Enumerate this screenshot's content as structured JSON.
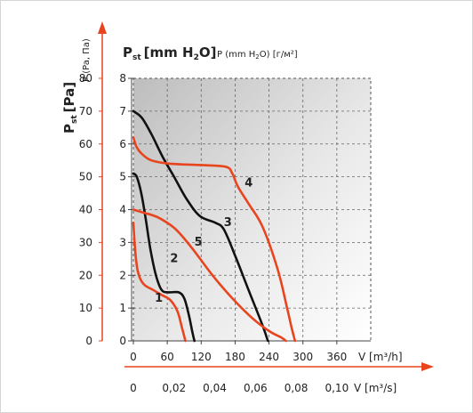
{
  "chart_data": {
    "type": "line",
    "y_axis_outer": {
      "label_main": "P",
      "label_sub": "st",
      "label_unit": "[Pa]",
      "label_alt": "P (Pa, Па)",
      "ticks": [
        0,
        10,
        20,
        30,
        40,
        50,
        60,
        70,
        80
      ],
      "range": [
        0,
        80
      ]
    },
    "y_axis_inner": {
      "label_main": "P",
      "label_sub": "st",
      "label_unit_pre": "[mm H",
      "label_unit_sub": "2",
      "label_unit_post": "O]",
      "label_alt_pre": "P (mm H",
      "label_alt_sub": "2",
      "label_alt_post": "O) [г/м²]",
      "ticks": [
        0,
        1,
        2,
        3,
        4,
        5,
        6,
        7,
        8
      ],
      "range": [
        0,
        8
      ]
    },
    "x_axis_m3h": {
      "label": "V [m³/h]",
      "ticks": [
        "0",
        "60",
        "120",
        "180",
        "240",
        "300",
        "360"
      ],
      "range": [
        0,
        420
      ]
    },
    "x_axis_m3s": {
      "label": "V [m³/s]",
      "ticks": [
        "0",
        "0,02",
        "0,04",
        "0,06",
        "0,08",
        "0,10"
      ]
    },
    "grid": true,
    "series": [
      {
        "name": "1",
        "color": "#e8451e",
        "points": [
          [
            0,
            36
          ],
          [
            3,
            28
          ],
          [
            7,
            22
          ],
          [
            12,
            19
          ],
          [
            20,
            17
          ],
          [
            35,
            15.5
          ],
          [
            50,
            14
          ],
          [
            65,
            12.5
          ],
          [
            78,
            9
          ],
          [
            86,
            4
          ],
          [
            92,
            0
          ]
        ]
      },
      {
        "name": "2",
        "color": "#111111",
        "points": [
          [
            0,
            51
          ],
          [
            6,
            50
          ],
          [
            14,
            45
          ],
          [
            22,
            37
          ],
          [
            30,
            28
          ],
          [
            40,
            20
          ],
          [
            50,
            15.5
          ],
          [
            62,
            14.8
          ],
          [
            80,
            14.8
          ],
          [
            90,
            13
          ],
          [
            98,
            8
          ],
          [
            104,
            3
          ],
          [
            108,
            0
          ]
        ]
      },
      {
        "name": "3",
        "color": "#111111",
        "points": [
          [
            0,
            70
          ],
          [
            15,
            68
          ],
          [
            32,
            63
          ],
          [
            52,
            56
          ],
          [
            72,
            50
          ],
          [
            95,
            43
          ],
          [
            118,
            38
          ],
          [
            145,
            36
          ],
          [
            160,
            34
          ],
          [
            180,
            26
          ],
          [
            205,
            15
          ],
          [
            228,
            5
          ],
          [
            238,
            0
          ]
        ]
      },
      {
        "name": "4",
        "color": "#e8451e",
        "points": [
          [
            0,
            62
          ],
          [
            6,
            59
          ],
          [
            15,
            57
          ],
          [
            32,
            55
          ],
          [
            65,
            54
          ],
          [
            130,
            53.5
          ],
          [
            165,
            53
          ],
          [
            175,
            51
          ],
          [
            185,
            47
          ],
          [
            203,
            42
          ],
          [
            228,
            35
          ],
          [
            255,
            22
          ],
          [
            272,
            10
          ],
          [
            280,
            4
          ],
          [
            286,
            0
          ]
        ]
      },
      {
        "name": "5",
        "color": "#e8451e",
        "points": [
          [
            0,
            40
          ],
          [
            20,
            39
          ],
          [
            45,
            37.5
          ],
          [
            75,
            34
          ],
          [
            105,
            28
          ],
          [
            140,
            20
          ],
          [
            175,
            13
          ],
          [
            210,
            7
          ],
          [
            240,
            3
          ],
          [
            262,
            1
          ],
          [
            270,
            0
          ]
        ]
      }
    ],
    "curve_labels": [
      {
        "text": "1",
        "x": 38,
        "y": 12
      },
      {
        "text": "2",
        "x": 65,
        "y": 24
      },
      {
        "text": "3",
        "x": 160,
        "y": 35
      },
      {
        "text": "4",
        "x": 197,
        "y": 47
      },
      {
        "text": "5",
        "x": 108,
        "y": 29
      }
    ]
  }
}
